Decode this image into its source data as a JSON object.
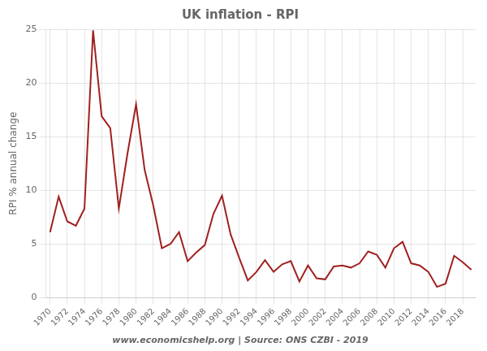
{
  "chart_data": {
    "type": "line",
    "title": "UK inflation - RPI",
    "ylabel": "RPI % annual change",
    "annotations": [
      "www.economicshelp.org | Source: ONS CZBI - 2019"
    ],
    "x": [
      1970,
      1971,
      1972,
      1973,
      1974,
      1975,
      1976,
      1977,
      1978,
      1979,
      1980,
      1981,
      1982,
      1983,
      1984,
      1985,
      1986,
      1987,
      1988,
      1989,
      1990,
      1991,
      1992,
      1993,
      1994,
      1995,
      1996,
      1997,
      1998,
      1999,
      2000,
      2001,
      2002,
      2003,
      2004,
      2005,
      2006,
      2007,
      2008,
      2009,
      2010,
      2011,
      2012,
      2013,
      2014,
      2015,
      2016,
      2017,
      2018,
      2019
    ],
    "values": [
      6.1,
      9.4,
      7.1,
      6.7,
      8.3,
      24.9,
      16.9,
      15.8,
      8.3,
      13.4,
      18.0,
      11.9,
      8.6,
      4.6,
      5.0,
      6.1,
      3.4,
      4.2,
      4.9,
      7.8,
      9.5,
      5.9,
      3.7,
      1.6,
      2.4,
      3.5,
      2.4,
      3.1,
      3.4,
      1.5,
      3.0,
      1.8,
      1.7,
      2.9,
      3.0,
      2.8,
      3.2,
      4.3,
      4.0,
      2.8,
      4.6,
      5.2,
      3.2,
      3.0,
      2.4,
      1.0,
      1.3,
      3.9,
      3.3,
      2.6
    ],
    "color": "#a02020",
    "xlim": [
      1969.5,
      2019.5
    ],
    "xticks": [
      1970,
      1972,
      1974,
      1976,
      1978,
      1980,
      1982,
      1984,
      1986,
      1988,
      1990,
      1992,
      1994,
      1996,
      1998,
      2000,
      2002,
      2004,
      2006,
      2008,
      2010,
      2012,
      2014,
      2016,
      2018
    ],
    "ylim": [
      0,
      25
    ],
    "yticks": [
      0,
      5,
      10,
      15,
      20,
      25
    ],
    "grid": true
  }
}
